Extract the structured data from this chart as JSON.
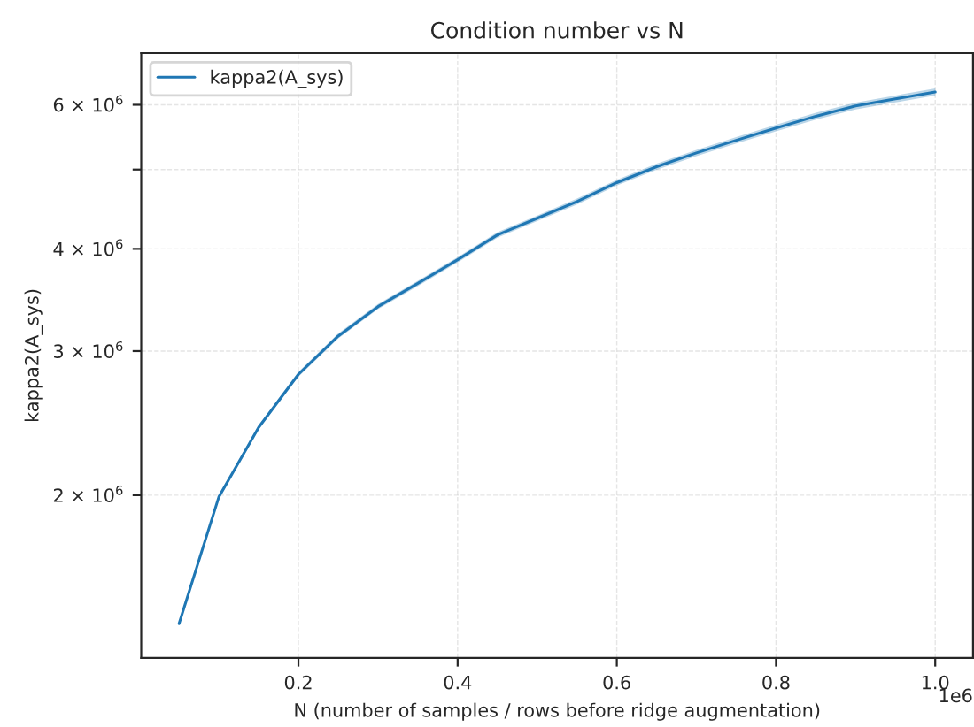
{
  "chart_data": {
    "type": "line",
    "title": "Condition number vs N",
    "xlabel": "N (number of samples / rows before ridge augmentation)",
    "ylabel": "kappa2(A_sys)",
    "x": [
      0.05,
      0.1,
      0.15,
      0.2,
      0.25,
      0.3,
      0.35,
      0.4,
      0.45,
      0.5,
      0.55,
      0.6,
      0.65,
      0.7,
      0.75,
      0.8,
      0.85,
      0.9,
      0.95,
      1.0
    ],
    "series": [
      {
        "name": "kappa2(A_sys)",
        "color": "#1f77b4",
        "values": [
          1393000,
          1990000,
          2420000,
          2810000,
          3130000,
          3400000,
          3630000,
          3880000,
          4160000,
          4360000,
          4570000,
          4820000,
          5040000,
          5240000,
          5430000,
          5620000,
          5810000,
          5980000,
          6100000,
          6220000
        ],
        "lower": [
          1388000,
          1980000,
          2405000,
          2790000,
          3108000,
          3376000,
          3603000,
          3851000,
          4128000,
          4326000,
          4533000,
          4780000,
          4997000,
          5194000,
          5381000,
          5568000,
          5755000,
          5922000,
          6040000,
          6157000
        ],
        "upper": [
          1398000,
          2000000,
          2435000,
          2830000,
          3152000,
          3424000,
          3657000,
          3909000,
          4192000,
          4394000,
          4607000,
          4860000,
          5083000,
          5286000,
          5479000,
          5672000,
          5865000,
          6038000,
          6160000,
          6283000
        ]
      }
    ],
    "log": "y",
    "xlim": [
      0.0025,
      1.0475
    ],
    "ylim": [
      1265000,
      6940000
    ],
    "xticks": [
      0.2,
      0.4,
      0.6,
      0.8,
      {
        "value": 1.0,
        "label": "1.0"
      }
    ],
    "yticks": [
      {
        "value": 2000000,
        "label": "2 × 10$^{6}$"
      },
      {
        "value": 3000000,
        "label": "3 × 10$^{6}$"
      },
      {
        "value": 4000000,
        "label": "4 × 10$^{6}$"
      },
      {
        "value": 5000000,
        "label": null
      },
      {
        "value": 6000000,
        "label": "6 × 10$^{6}$"
      }
    ],
    "grid": true,
    "legend": "top left",
    "line_style": "solid",
    "marker": "none",
    "annotations": [
      "1e6"
    ]
  }
}
